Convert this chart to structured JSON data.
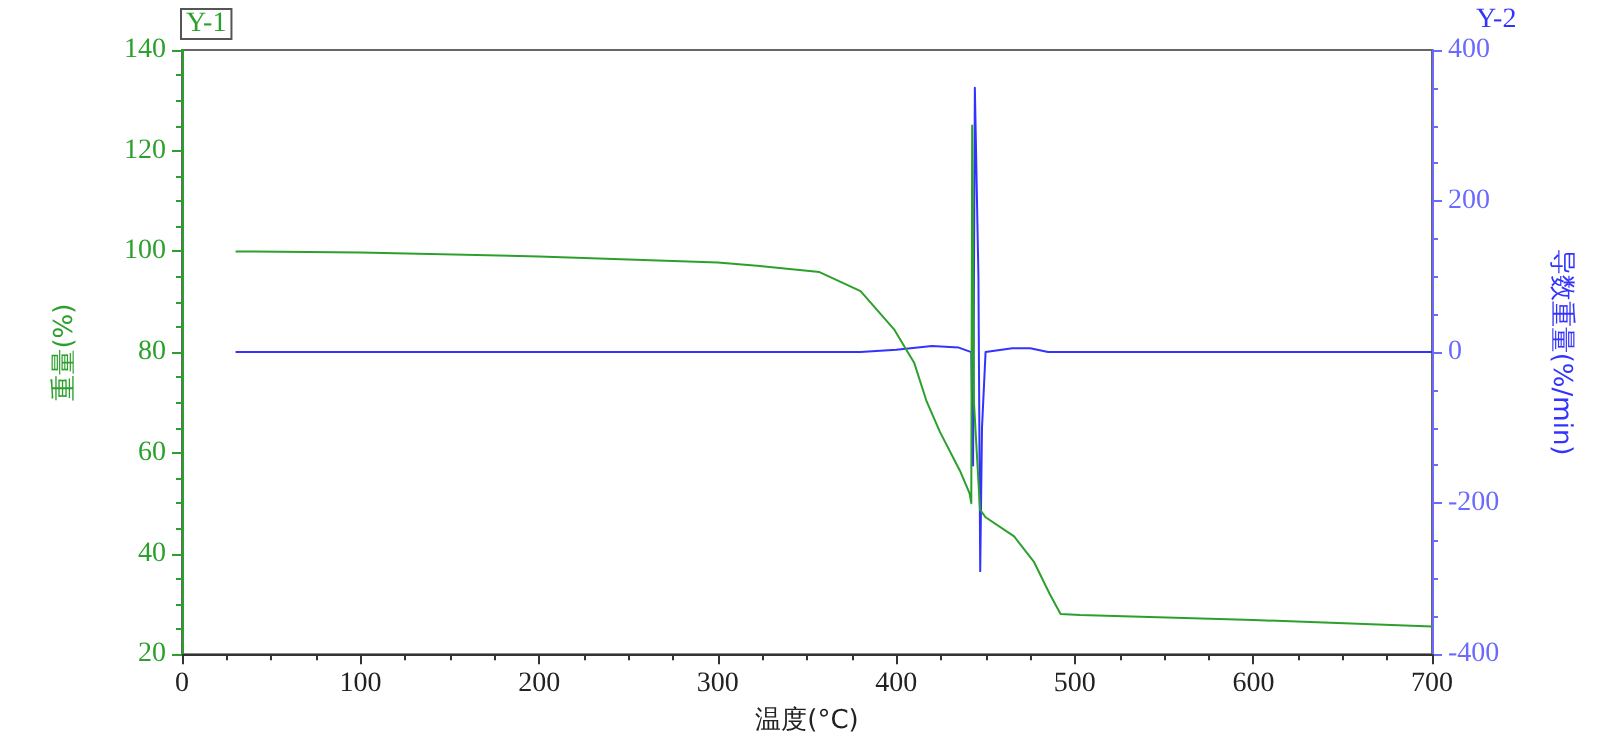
{
  "chart_data": {
    "type": "line",
    "xlabel": "温度(°C)",
    "ylabel": "重量(%)",
    "y2label": "导数重量(%/min)",
    "annotations": [
      "Y-1",
      "Y-2"
    ],
    "xlim": [
      0,
      700
    ],
    "xticks": [
      0,
      100,
      200,
      300,
      400,
      500,
      600,
      700
    ],
    "ylim": [
      20,
      140
    ],
    "yticks": [
      20,
      40,
      60,
      80,
      100,
      120,
      140
    ],
    "y2lim": [
      -400,
      400
    ],
    "y2ticks": [
      -400,
      -200,
      0,
      200,
      400
    ],
    "grid": false,
    "marker": "none",
    "line_style": "solid",
    "series": [
      {
        "color": "#2ca02c",
        "x": [
          30,
          100,
          200,
          300,
          323.7,
          357,
          380,
          399,
          410,
          417,
          424.5,
          435.7,
          441,
          442,
          442.5,
          443.5,
          446.9,
          450,
          466,
          477,
          486,
          492,
          503,
          600,
          700
        ],
        "values": [
          100,
          99.8,
          99,
          97.8,
          97.1,
          95.9,
          92.1,
          84.4,
          77.9,
          70.2,
          64.1,
          56.4,
          52,
          50,
          125,
          70,
          48.7,
          47.2,
          43.4,
          38.4,
          31.9,
          28,
          27.8,
          26.8,
          25.5
        ]
      },
      {
        "color": "#3333ff",
        "axis": "y2",
        "x": [
          30,
          100,
          300,
          380,
          400,
          420,
          435,
          442,
          443,
          444,
          446,
          447,
          448,
          450,
          465,
          475,
          485,
          700
        ],
        "values": [
          0,
          0,
          0,
          0,
          3,
          8,
          6,
          0,
          -150,
          350,
          100,
          -290,
          -100,
          0,
          5,
          5,
          0,
          0
        ]
      }
    ]
  }
}
